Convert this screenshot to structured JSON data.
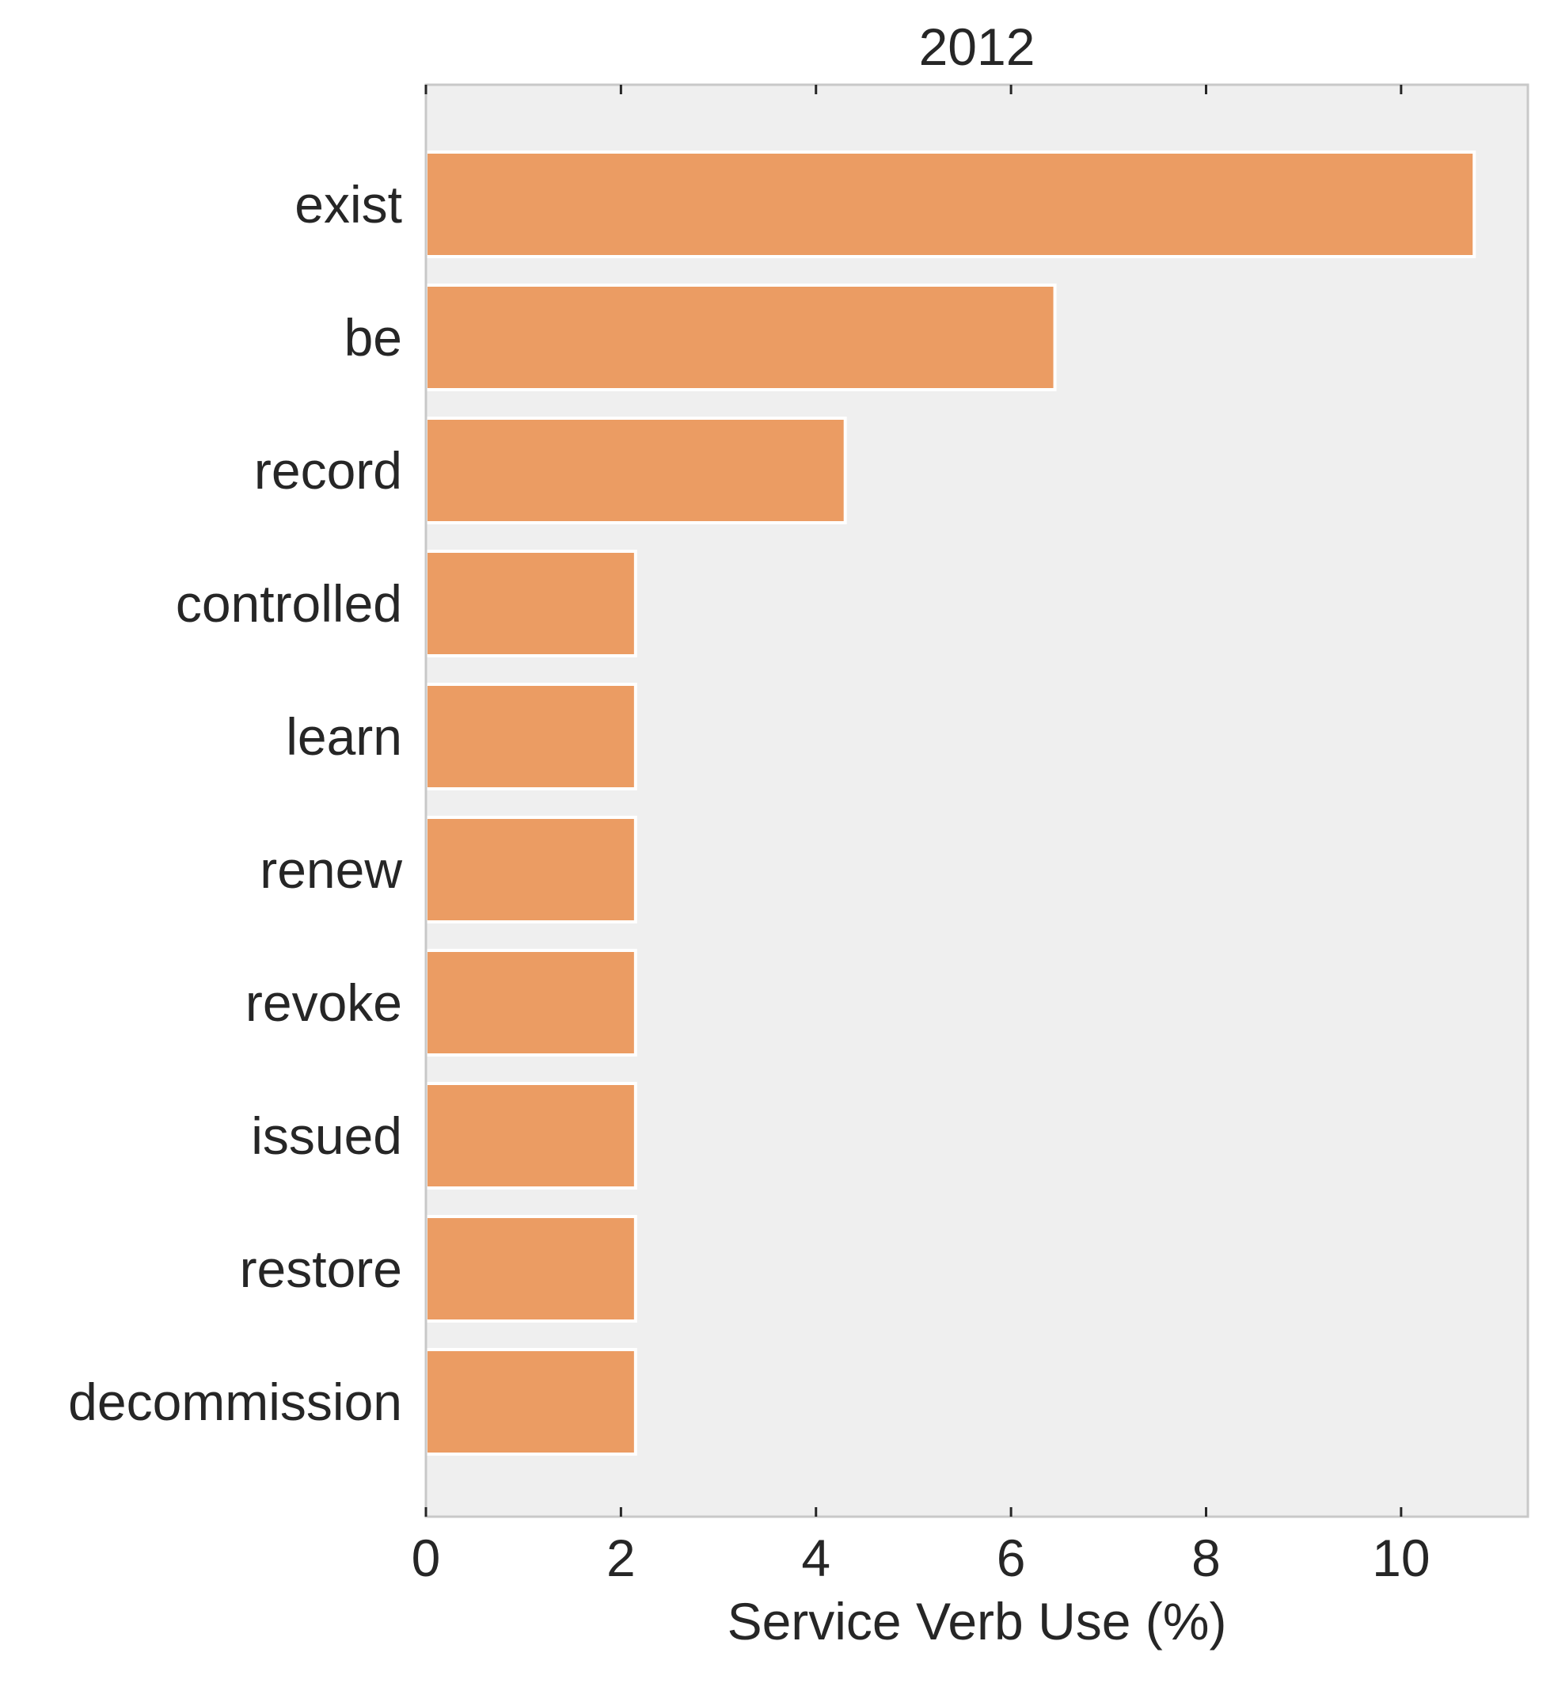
{
  "chart_data": {
    "type": "bar",
    "orientation": "horizontal",
    "title": "2012",
    "xlabel": "Service Verb Use (%)",
    "ylabel": "",
    "categories": [
      "exist",
      "be",
      "record",
      "controlled",
      "learn",
      "renew",
      "revoke",
      "issued",
      "restore",
      "decommission"
    ],
    "values": [
      10.75,
      6.45,
      4.3,
      2.15,
      2.15,
      2.15,
      2.15,
      2.15,
      2.15,
      2.15
    ],
    "xlim": [
      0,
      11.3
    ],
    "xticks": [
      0,
      2,
      4,
      6,
      8,
      10
    ],
    "grid": false,
    "legend": "none",
    "colors": {
      "bar": "#EB9C63",
      "bar_edge": "#FFFFFF",
      "plot_background": "#EFEFEF",
      "axis_frame": "#C8C8C8",
      "tick_mark": "#262626",
      "text": "#262626"
    }
  }
}
